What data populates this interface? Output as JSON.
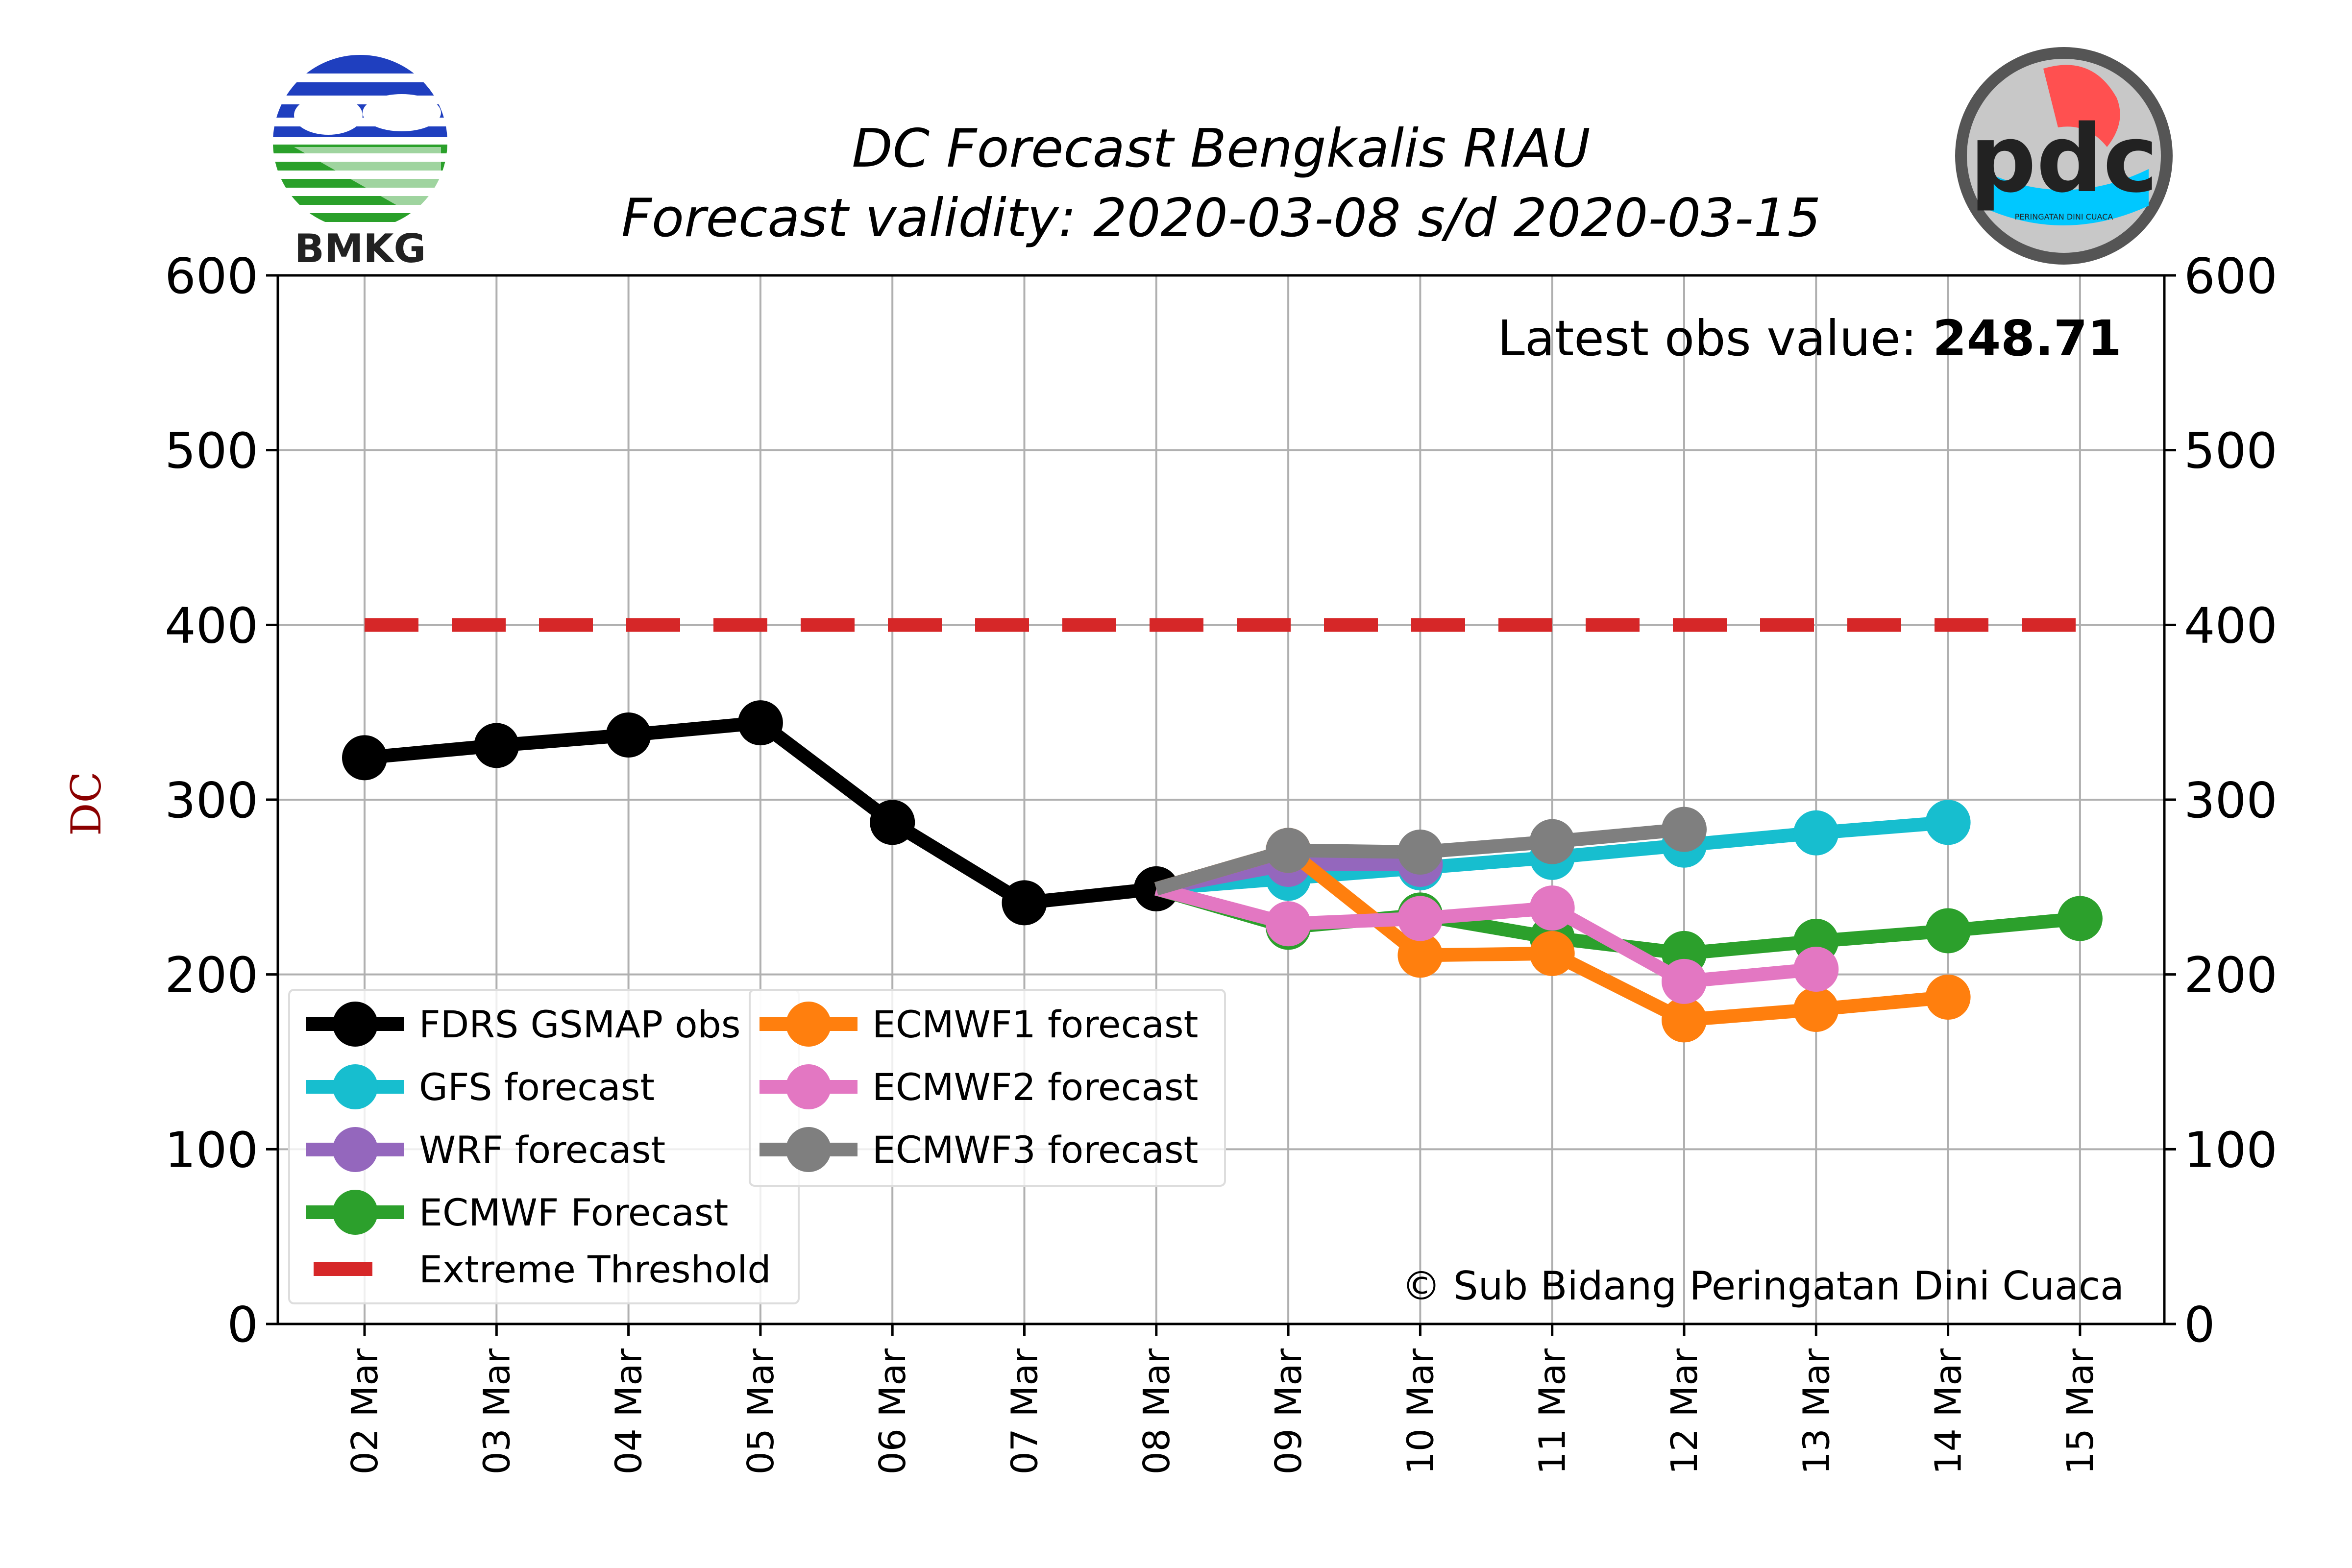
{
  "chart_data": {
    "type": "line",
    "title": "DC Forecast Bengkalis RIAU",
    "subtitle": "Forecast validity: 2020-03-08 s/d 2020-03-15",
    "ylabel": "DC",
    "xlabel": "",
    "ylim": [
      0,
      600
    ],
    "yticks": [
      "0",
      "100",
      "200",
      "300",
      "400",
      "500",
      "600"
    ],
    "categories": [
      "02 Mar",
      "03 Mar",
      "04 Mar",
      "05 Mar",
      "06 Mar",
      "07 Mar",
      "08 Mar",
      "09 Mar",
      "10 Mar",
      "11 Mar",
      "12 Mar",
      "13 Mar",
      "14 Mar",
      "15 Mar"
    ],
    "grid": true,
    "legend_position": "lower-left",
    "latest_obs_label": "Latest obs value: ",
    "latest_obs_value": "248.71",
    "copyright": "© Sub Bidang Peringatan Dini Cuaca",
    "series": [
      {
        "name": "FDRS GSMAP obs",
        "color": "#000000",
        "values": [
          324,
          331,
          337,
          344,
          287,
          241,
          249,
          null,
          null,
          null,
          null,
          null,
          null,
          null
        ]
      },
      {
        "name": "GFS forecast",
        "color": "#17becf",
        "values": [
          null,
          null,
          null,
          null,
          null,
          null,
          249,
          255,
          261,
          267,
          274,
          281,
          287,
          null
        ]
      },
      {
        "name": "WRF forecast",
        "color": "#9467bd",
        "values": [
          null,
          null,
          null,
          null,
          null,
          null,
          249,
          263,
          263,
          null,
          null,
          null,
          null,
          null
        ]
      },
      {
        "name": "ECMWF Forecast",
        "color": "#2ca02c",
        "values": [
          null,
          null,
          null,
          null,
          null,
          null,
          249,
          227,
          234,
          221,
          212,
          219,
          225,
          232
        ]
      },
      {
        "name": "ECMWF1 forecast",
        "color": "#ff7f0e",
        "values": [
          null,
          null,
          null,
          null,
          null,
          null,
          249,
          271,
          211,
          212,
          174,
          180,
          187,
          null
        ]
      },
      {
        "name": "ECMWF2 forecast",
        "color": "#e377c2",
        "values": [
          null,
          null,
          null,
          null,
          null,
          null,
          249,
          229,
          232,
          238,
          196,
          203,
          null,
          null
        ]
      },
      {
        "name": "ECMWF3 forecast",
        "color": "#7f7f7f",
        "values": [
          null,
          null,
          null,
          null,
          null,
          null,
          249,
          271,
          270,
          276,
          283,
          null,
          null,
          null
        ]
      }
    ],
    "threshold": {
      "name": "Extreme Threshold",
      "value": 400,
      "color": "#d62728",
      "from": "02 Mar",
      "to": "15 Mar"
    }
  },
  "logos": {
    "left": {
      "text": "BMKG",
      "icon": "bmkg-logo-icon"
    },
    "right": {
      "text": "pdc",
      "caption": "PERINGATAN DINI CUACA",
      "icon": "pdc-logo-icon"
    }
  }
}
